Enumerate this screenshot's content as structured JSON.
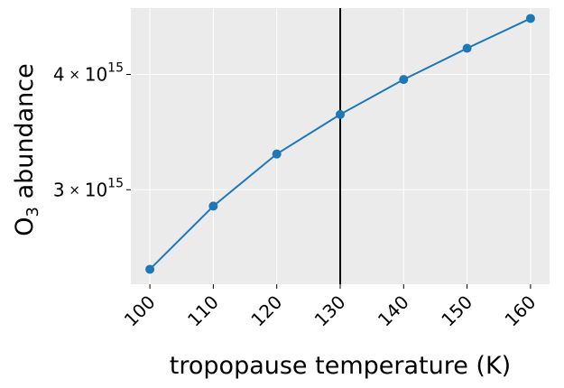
{
  "chart_data": {
    "type": "line",
    "title": "",
    "xlabel": "tropopause temperature (K)",
    "ylabel_main": "O",
    "ylabel_sub": "3",
    "ylabel_rest": " abundance",
    "x_ticks": [
      100,
      110,
      120,
      130,
      140,
      150,
      160
    ],
    "y_ticks": [
      {
        "value": 3000000000000000.0,
        "mantissa": "3",
        "base": "10",
        "exponent": "15"
      },
      {
        "value": 4000000000000000.0,
        "mantissa": "4",
        "base": "10",
        "exponent": "15"
      }
    ],
    "xlim": [
      97,
      163
    ],
    "ylim": [
      2370000000000000.0,
      4720000000000000.0
    ],
    "y_scale": "log",
    "vertical_line_x": 130,
    "series": [
      {
        "x": [
          100,
          110,
          120,
          130,
          140,
          150,
          160
        ],
        "y": [
          2460000000000000.0,
          2880000000000000.0,
          3280000000000000.0,
          3620000000000000.0,
          3950000000000000.0,
          4270000000000000.0,
          4600000000000000.0
        ]
      }
    ],
    "colors": {
      "line": "#1f77b4",
      "background": "#ebebeb",
      "grid": "#ffffff",
      "vline": "#000000"
    },
    "grid": true
  }
}
